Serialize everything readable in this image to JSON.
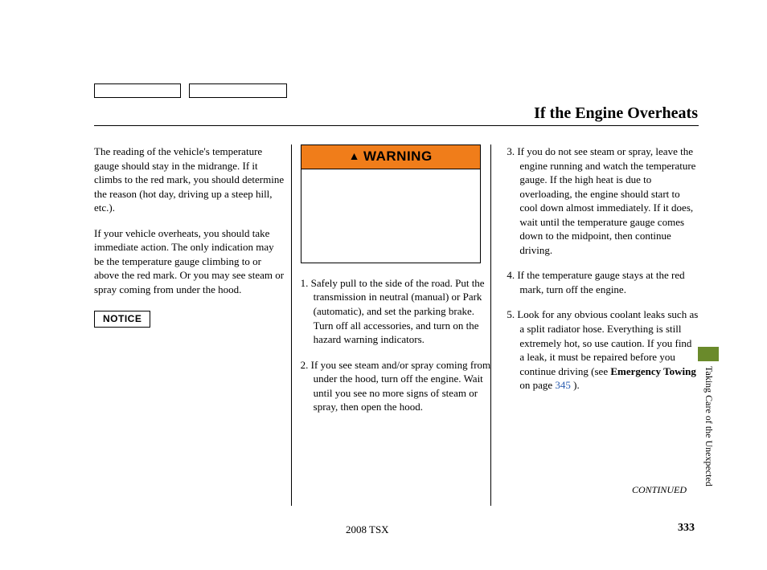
{
  "header": {
    "title": "If the Engine Overheats"
  },
  "col1": {
    "p1": "The reading of the vehicle's temperature gauge should stay in the midrange. If it climbs to the red mark, you should determine the reason (hot day, driving up a steep hill, etc.).",
    "p2": "If your vehicle overheats, you should take immediate action. The only indication may be the temperature gauge climbing to or above the red mark. Or you may see steam or spray coming from under the hood.",
    "notice": "NOTICE"
  },
  "col2": {
    "warning_label": "WARNING",
    "step1": "Safely pull to the side of the road. Put the transmission in neutral (manual) or Park (automatic), and set the parking brake. Turn off all accessories, and turn on the hazard warning indicators.",
    "step2": "If you see steam and/or spray coming from under the hood, turn off the engine. Wait until you see no more signs of steam or spray, then open the hood."
  },
  "col3": {
    "step3": "If you do not see steam or spray, leave the engine running and watch the temperature gauge. If the high heat is due to overloading, the engine should start to cool down almost immediately. If it does, wait until the temperature gauge comes down to the midpoint, then continue driving.",
    "step4": "If the temperature gauge stays at the red mark, turn off the engine.",
    "step5_a": "Look for any obvious coolant leaks such as a split radiator hose. Everything is still extremely hot, so use caution. If you find a leak, it must be repaired before you continue driving (see ",
    "step5_bold": "Emergency Towing",
    "step5_b": " on page ",
    "step5_link": "345",
    "step5_c": " )."
  },
  "footer": {
    "continued": "CONTINUED",
    "model": "2008  TSX",
    "page": "333"
  },
  "side": {
    "section": "Taking Care of the Unexpected"
  },
  "colors": {
    "warning_bg": "#f07d1a",
    "tab_bg": "#6a8a2b",
    "link": "#2a5db0"
  }
}
